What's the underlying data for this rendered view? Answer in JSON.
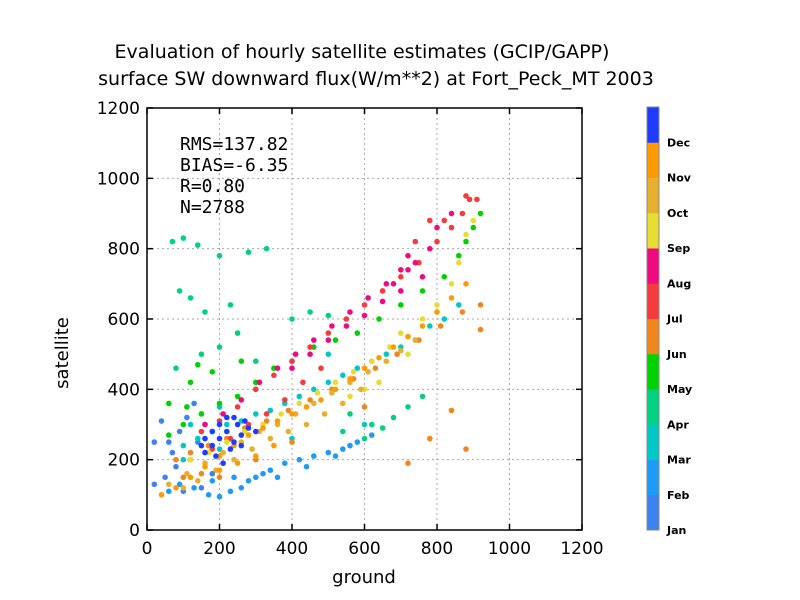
{
  "chart_data": {
    "type": "scatter",
    "title": "Evaluation of hourly satellite estimates (GCIP/GAPP)",
    "subtitle": "surface SW downward flux(W/m**2) at Fort_Peck_MT 2003",
    "xlabel": "ground",
    "ylabel": "satellite",
    "xlim": [
      0,
      1200
    ],
    "ylim": [
      0,
      1200
    ],
    "xticks": [
      0,
      200,
      400,
      600,
      800,
      1000,
      1200
    ],
    "yticks": [
      0,
      200,
      400,
      600,
      800,
      1000,
      1200
    ],
    "grid": true,
    "stats": [
      "RMS=137.82",
      "BIAS=-6.35",
      "R=0.80",
      "N=2788"
    ],
    "legend_position": "right",
    "colorbar": {
      "labels": [
        "Jan",
        "Feb",
        "Mar",
        "Apr",
        "May",
        "Jun",
        "Jul",
        "Aug",
        "Sep",
        "Oct",
        "Nov",
        "Dec"
      ],
      "colors": [
        "#3c82f0",
        "#1e9bf5",
        "#00c8c8",
        "#00d282",
        "#00d200",
        "#f0871e",
        "#f53c3c",
        "#f00a82",
        "#e6dc32",
        "#e6af2d",
        "#ff9b00",
        "#1e3cff"
      ]
    },
    "series": [
      {
        "values": [
          [
            20,
            130
          ],
          [
            50,
            150
          ],
          [
            80,
            180
          ],
          [
            100,
            110
          ],
          [
            120,
            200
          ],
          [
            150,
            120
          ],
          [
            180,
            160
          ],
          [
            60,
            250
          ],
          [
            90,
            280
          ],
          [
            110,
            320
          ],
          [
            130,
            360
          ],
          [
            40,
            310
          ],
          [
            70,
            220
          ],
          [
            140,
            250
          ],
          [
            160,
            300
          ],
          [
            20,
            250
          ]
        ]
      },
      {
        "values": [
          [
            60,
            110
          ],
          [
            90,
            130
          ],
          [
            130,
            120
          ],
          [
            170,
            100
          ],
          [
            200,
            95
          ],
          [
            230,
            110
          ],
          [
            260,
            120
          ],
          [
            300,
            150
          ],
          [
            340,
            170
          ],
          [
            380,
            190
          ],
          [
            420,
            200
          ],
          [
            460,
            210
          ],
          [
            500,
            220
          ],
          [
            540,
            230
          ],
          [
            580,
            250
          ],
          [
            620,
            270
          ],
          [
            180,
            140
          ],
          [
            240,
            150
          ],
          [
            280,
            140
          ],
          [
            320,
            160
          ],
          [
            360,
            150
          ],
          [
            440,
            180
          ],
          [
            520,
            210
          ],
          [
            560,
            240
          ]
        ]
      },
      {
        "values": [
          [
            100,
            240
          ],
          [
            140,
            260
          ],
          [
            180,
            280
          ],
          [
            220,
            300
          ],
          [
            260,
            310
          ],
          [
            300,
            330
          ],
          [
            340,
            340
          ],
          [
            380,
            360
          ],
          [
            420,
            380
          ],
          [
            460,
            400
          ],
          [
            500,
            420
          ],
          [
            540,
            440
          ],
          [
            580,
            460
          ],
          [
            620,
            480
          ],
          [
            660,
            500
          ],
          [
            700,
            520
          ],
          [
            740,
            540
          ],
          [
            780,
            580
          ],
          [
            820,
            600
          ],
          [
            860,
            640
          ],
          [
            120,
            300
          ],
          [
            200,
            350
          ],
          [
            300,
            400
          ],
          [
            500,
            500
          ],
          [
            100,
            200
          ],
          [
            200,
            230
          ],
          [
            400,
            260
          ],
          [
            600,
            300
          ]
        ]
      },
      {
        "values": [
          [
            70,
            820
          ],
          [
            100,
            830
          ],
          [
            140,
            810
          ],
          [
            200,
            780
          ],
          [
            280,
            790
          ],
          [
            330,
            800
          ],
          [
            90,
            680
          ],
          [
            120,
            660
          ],
          [
            160,
            620
          ],
          [
            230,
            640
          ],
          [
            250,
            560
          ],
          [
            400,
            600
          ],
          [
            450,
            620
          ],
          [
            500,
            610
          ],
          [
            80,
            460
          ],
          [
            150,
            500
          ],
          [
            200,
            520
          ],
          [
            300,
            480
          ],
          [
            560,
            330
          ],
          [
            620,
            300
          ],
          [
            680,
            320
          ],
          [
            720,
            350
          ],
          [
            760,
            380
          ],
          [
            540,
            280
          ],
          [
            600,
            260
          ],
          [
            650,
            290
          ]
        ]
      },
      {
        "values": [
          [
            60,
            270
          ],
          [
            100,
            300
          ],
          [
            150,
            330
          ],
          [
            200,
            360
          ],
          [
            250,
            380
          ],
          [
            300,
            420
          ],
          [
            350,
            460
          ],
          [
            400,
            480
          ],
          [
            460,
            520
          ],
          [
            120,
            420
          ],
          [
            180,
            450
          ],
          [
            260,
            480
          ],
          [
            520,
            540
          ],
          [
            580,
            560
          ],
          [
            640,
            600
          ],
          [
            700,
            640
          ],
          [
            760,
            680
          ],
          [
            820,
            720
          ],
          [
            860,
            780
          ],
          [
            880,
            820
          ],
          [
            900,
            860
          ],
          [
            920,
            900
          ],
          [
            60,
            360
          ],
          [
            110,
            350
          ],
          [
            140,
            470
          ]
        ]
      },
      {
        "values": [
          [
            80,
            200
          ],
          [
            120,
            220
          ],
          [
            170,
            240
          ],
          [
            220,
            260
          ],
          [
            270,
            290
          ],
          [
            330,
            310
          ],
          [
            390,
            340
          ],
          [
            450,
            370
          ],
          [
            510,
            400
          ],
          [
            570,
            430
          ],
          [
            630,
            460
          ],
          [
            690,
            500
          ],
          [
            750,
            540
          ],
          [
            810,
            580
          ],
          [
            870,
            620
          ],
          [
            920,
            640
          ],
          [
            720,
            190
          ],
          [
            780,
            260
          ],
          [
            840,
            340
          ],
          [
            880,
            230
          ],
          [
            920,
            570
          ],
          [
            200,
            150
          ],
          [
            300,
            200
          ],
          [
            400,
            250
          ],
          [
            600,
            350
          ],
          [
            100,
            150
          ],
          [
            150,
            160
          ]
        ]
      },
      {
        "values": [
          [
            150,
            280
          ],
          [
            200,
            310
          ],
          [
            250,
            350
          ],
          [
            300,
            400
          ],
          [
            350,
            440
          ],
          [
            400,
            480
          ],
          [
            450,
            520
          ],
          [
            500,
            560
          ],
          [
            550,
            600
          ],
          [
            600,
            640
          ],
          [
            650,
            680
          ],
          [
            700,
            720
          ],
          [
            750,
            760
          ],
          [
            800,
            820
          ],
          [
            840,
            860
          ],
          [
            870,
            900
          ],
          [
            890,
            940
          ],
          [
            910,
            940
          ],
          [
            880,
            950
          ],
          [
            780,
            880
          ],
          [
            740,
            820
          ],
          [
            820,
            880
          ],
          [
            180,
            230
          ],
          [
            230,
            260
          ],
          [
            280,
            300
          ],
          [
            330,
            330
          ],
          [
            380,
            370
          ],
          [
            430,
            420
          ],
          [
            480,
            460
          ]
        ]
      },
      {
        "values": [
          [
            160,
            300
          ],
          [
            210,
            330
          ],
          [
            260,
            370
          ],
          [
            310,
            420
          ],
          [
            360,
            460
          ],
          [
            410,
            500
          ],
          [
            460,
            540
          ],
          [
            510,
            580
          ],
          [
            560,
            620
          ],
          [
            610,
            660
          ],
          [
            660,
            700
          ],
          [
            700,
            740
          ],
          [
            720,
            780
          ],
          [
            740,
            760
          ],
          [
            760,
            720
          ],
          [
            780,
            800
          ],
          [
            800,
            860
          ],
          [
            840,
            900
          ],
          [
            400,
            460
          ],
          [
            450,
            500
          ],
          [
            500,
            540
          ],
          [
            550,
            580
          ],
          [
            600,
            610
          ],
          [
            650,
            650
          ],
          [
            680,
            700
          ],
          [
            700,
            680
          ],
          [
            720,
            740
          ]
        ]
      },
      {
        "values": [
          [
            120,
            200
          ],
          [
            170,
            220
          ],
          [
            220,
            250
          ],
          [
            270,
            280
          ],
          [
            320,
            300
          ],
          [
            370,
            330
          ],
          [
            420,
            360
          ],
          [
            470,
            390
          ],
          [
            520,
            420
          ],
          [
            570,
            450
          ],
          [
            620,
            480
          ],
          [
            670,
            520
          ],
          [
            700,
            560
          ],
          [
            720,
            500
          ],
          [
            760,
            600
          ],
          [
            800,
            640
          ],
          [
            840,
            700
          ],
          [
            860,
            760
          ],
          [
            880,
            840
          ],
          [
            900,
            880
          ],
          [
            640,
            420
          ],
          [
            600,
            400
          ],
          [
            560,
            380
          ]
        ]
      },
      {
        "values": [
          [
            60,
            130
          ],
          [
            110,
            160
          ],
          [
            160,
            190
          ],
          [
            210,
            220
          ],
          [
            260,
            250
          ],
          [
            310,
            280
          ],
          [
            360,
            300
          ],
          [
            410,
            330
          ],
          [
            460,
            360
          ],
          [
            510,
            390
          ],
          [
            560,
            420
          ],
          [
            610,
            450
          ],
          [
            660,
            480
          ],
          [
            700,
            510
          ],
          [
            740,
            540
          ],
          [
            100,
            120
          ],
          [
            140,
            140
          ],
          [
            190,
            170
          ],
          [
            240,
            200
          ],
          [
            290,
            230
          ],
          [
            340,
            260
          ],
          [
            390,
            280
          ],
          [
            440,
            300
          ],
          [
            490,
            330
          ],
          [
            540,
            360
          ],
          [
            590,
            400
          ]
        ]
      },
      {
        "values": [
          [
            40,
            100
          ],
          [
            80,
            120
          ],
          [
            120,
            150
          ],
          [
            160,
            180
          ],
          [
            200,
            210
          ],
          [
            240,
            240
          ],
          [
            280,
            270
          ],
          [
            320,
            290
          ],
          [
            360,
            310
          ],
          [
            400,
            330
          ],
          [
            440,
            350
          ],
          [
            480,
            370
          ],
          [
            520,
            400
          ],
          [
            560,
            430
          ],
          [
            600,
            460
          ],
          [
            640,
            490
          ],
          [
            680,
            520
          ],
          [
            720,
            550
          ],
          [
            760,
            580
          ],
          [
            800,
            620
          ],
          [
            840,
            660
          ],
          [
            880,
            700
          ],
          [
            200,
            170
          ],
          [
            250,
            190
          ],
          [
            300,
            210
          ],
          [
            350,
            240
          ]
        ]
      },
      {
        "values": [
          [
            160,
            220
          ],
          [
            180,
            240
          ],
          [
            200,
            260
          ],
          [
            220,
            280
          ],
          [
            240,
            250
          ],
          [
            260,
            270
          ],
          [
            280,
            290
          ],
          [
            200,
            300
          ],
          [
            220,
            320
          ],
          [
            180,
            280
          ],
          [
            160,
            260
          ],
          [
            190,
            210
          ],
          [
            230,
            230
          ],
          [
            250,
            300
          ],
          [
            270,
            310
          ],
          [
            300,
            280
          ],
          [
            210,
            190
          ],
          [
            150,
            240
          ],
          [
            240,
            320
          ],
          [
            260,
            240
          ]
        ]
      }
    ]
  }
}
